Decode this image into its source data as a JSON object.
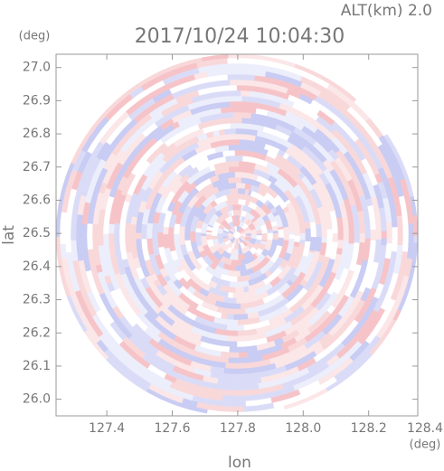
{
  "chart_data": {
    "type": "radar-ppi",
    "title": "2017/10/24 10:04:30",
    "subtitle": "ALT(km) 2.0",
    "x_label": "lon",
    "y_label": "lat",
    "x_unit": "(deg)",
    "y_unit": "(deg)",
    "xlim": [
      127.245,
      128.35
    ],
    "ylim": [
      25.95,
      27.04
    ],
    "xticks": [
      127.4,
      127.6,
      127.8,
      {
        "value": 128.0,
        "label": "128.0"
      },
      128.2,
      128.4
    ],
    "yticks": [
      {
        "value": 26.0,
        "label": "26.0"
      },
      26.1,
      26.2,
      26.3,
      26.4,
      26.5,
      26.6,
      26.7,
      26.8,
      26.9,
      {
        "value": 27.0,
        "label": "27.0"
      }
    ]
  }
}
